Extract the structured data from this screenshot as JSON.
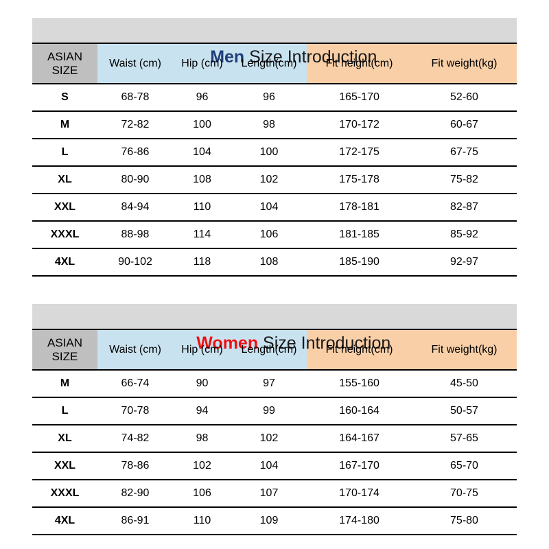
{
  "colors": {
    "title_band_bg": "#d9d9d9",
    "size_header_bg": "#bfbfbf",
    "measure_header_bg": "#c9e2f0",
    "fit_header_bg": "#f9cfa7",
    "men_title_color": "#1f3f7a",
    "women_title_color": "#ee1111",
    "header_bgs": [
      "#bfbfbf",
      "#c9e2f0",
      "#c9e2f0",
      "#c9e2f0",
      "#f9cfa7",
      "#f9cfa7"
    ]
  },
  "chart_data": [
    {
      "type": "table",
      "title": "Men Size Introduction",
      "title_highlight": "Men",
      "title_rest": " Size Introduction",
      "title_color": "#1f3f7a",
      "columns": [
        "ASIAN SIZE",
        "Waist (cm)",
        "Hip (cm)",
        "Length(cm)",
        "Fit height(cm)",
        "Fit weight(kg)"
      ],
      "rows": [
        [
          "S",
          "68-78",
          "96",
          "96",
          "165-170",
          "52-60"
        ],
        [
          "M",
          "72-82",
          "100",
          "98",
          "170-172",
          "60-67"
        ],
        [
          "L",
          "76-86",
          "104",
          "100",
          "172-175",
          "67-75"
        ],
        [
          "XL",
          "80-90",
          "108",
          "102",
          "175-178",
          "75-82"
        ],
        [
          "XXL",
          "84-94",
          "110",
          "104",
          "178-181",
          "82-87"
        ],
        [
          "XXXL",
          "88-98",
          "114",
          "106",
          "181-185",
          "85-92"
        ],
        [
          "4XL",
          "90-102",
          "118",
          "108",
          "185-190",
          "92-97"
        ]
      ]
    },
    {
      "type": "table",
      "title": "Women Size Introduction",
      "title_highlight": "Women",
      "title_rest": " Size Introduction",
      "title_color": "#ee1111",
      "columns": [
        "ASIAN SIZE",
        "Waist (cm)",
        "Hip (cm)",
        "Length(cm)",
        "Fit height(cm)",
        "Fit weight(kg)"
      ],
      "rows": [
        [
          "M",
          "66-74",
          "90",
          "97",
          "155-160",
          "45-50"
        ],
        [
          "L",
          "70-78",
          "94",
          "99",
          "160-164",
          "50-57"
        ],
        [
          "XL",
          "74-82",
          "98",
          "102",
          "164-167",
          "57-65"
        ],
        [
          "XXL",
          "78-86",
          "102",
          "104",
          "167-170",
          "65-70"
        ],
        [
          "XXXL",
          "82-90",
          "106",
          "107",
          "170-174",
          "70-75"
        ],
        [
          "4XL",
          "86-91",
          "110",
          "109",
          "174-180",
          "75-80"
        ]
      ]
    }
  ]
}
